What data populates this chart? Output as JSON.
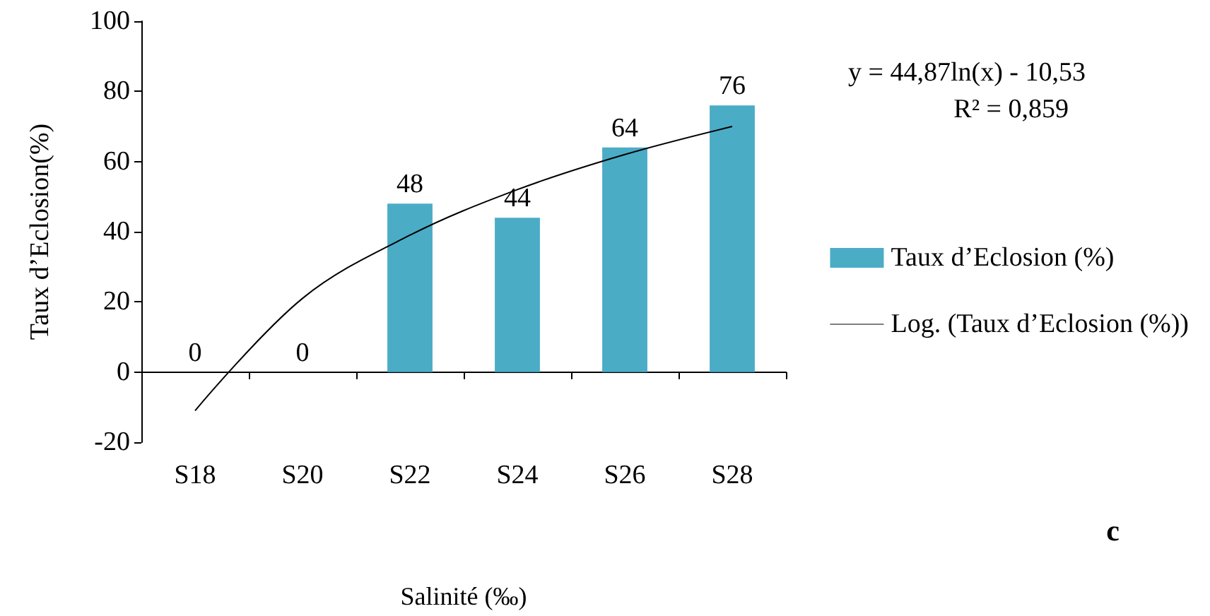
{
  "chart_data": {
    "type": "bar",
    "xlabel": "Salinité (‰)",
    "ylabel": "Taux d’Eclosion(%)",
    "categories": [
      "S18",
      "S20",
      "S22",
      "S24",
      "S26",
      "S28"
    ],
    "series": [
      {
        "name": "Taux d’Eclosion (%)",
        "color": "#4bacc6",
        "values": [
          0,
          0,
          48,
          44,
          64,
          76
        ],
        "value_labels": [
          "0",
          "0",
          "48",
          "44",
          "64",
          "76"
        ]
      },
      {
        "name": "Log. (Taux d’Eclosion (%))",
        "type": "line",
        "color": "#000000",
        "x": [
          "S18",
          "S20",
          "S22",
          "S24",
          "S26",
          "S28"
        ],
        "values": [
          -11,
          21,
          39,
          52,
          62,
          70
        ]
      }
    ],
    "ylim": [
      -20,
      100
    ],
    "yticks": [
      -20,
      0,
      20,
      40,
      60,
      80,
      100
    ],
    "legend": "right",
    "marker": "none",
    "line_style": "solid",
    "annotations": [
      "y = 44,87ln(x) - 10,53",
      "R² = 0,859",
      "c"
    ]
  }
}
